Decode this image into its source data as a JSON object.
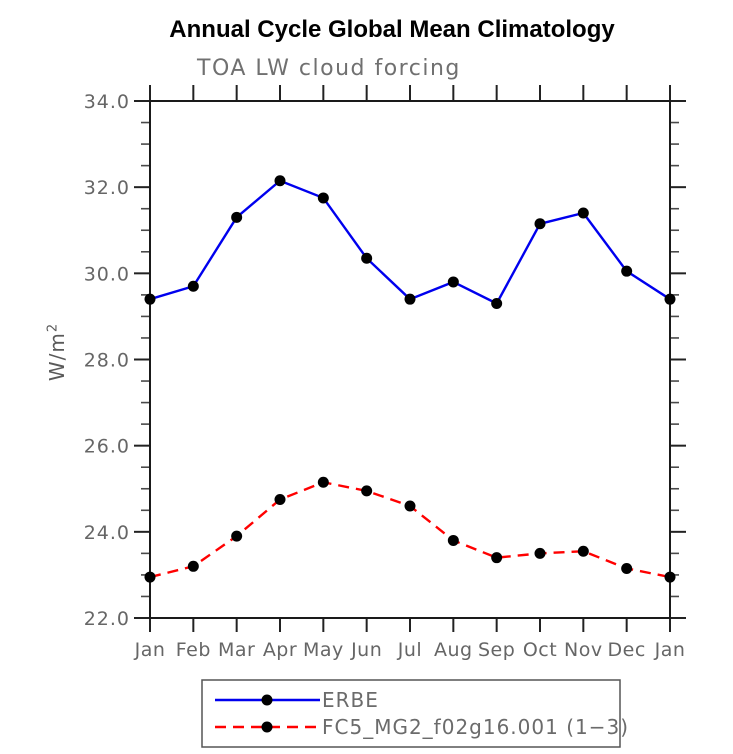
{
  "colors": {
    "background": "#ffffff",
    "axis": "#1a1a1a",
    "tick": "#222222",
    "tick_label": "#666666",
    "title": "#000000",
    "subtitle": "#707070",
    "ylabel": "#5a5a5a",
    "erbe_line": "#0000ee",
    "model_line": "#ff0000",
    "marker": "#000000",
    "legend_border": "#555555",
    "legend_text": "#6b6b6b"
  },
  "chart_data": {
    "type": "line",
    "title": "Annual Cycle Global Mean Climatology",
    "subtitle": "TOA LW cloud forcing",
    "ylabel_base": "W/m",
    "ylabel_exponent": "2",
    "ylabel": "W/m^2",
    "x_tick_labels": [
      "Jan",
      "Feb",
      "Mar",
      "Apr",
      "May",
      "Jun",
      "Jul",
      "Aug",
      "Sep",
      "Oct",
      "Nov",
      "Dec",
      "Jan"
    ],
    "y_ticks": [
      22.0,
      24.0,
      26.0,
      28.0,
      30.0,
      32.0,
      34.0
    ],
    "y_tick_labels": [
      "22.0",
      "24.0",
      "26.0",
      "28.0",
      "30.0",
      "32.0",
      "34.0"
    ],
    "ylim": [
      22.0,
      34.0
    ],
    "y_minor_step": 0.5,
    "grid": false,
    "legend_position": "bottom",
    "series": [
      {
        "name": "ERBE",
        "style": "solid",
        "marker": "circle",
        "color_key": "erbe_line",
        "values": [
          29.4,
          29.7,
          31.3,
          32.15,
          31.75,
          30.35,
          29.4,
          29.8,
          29.3,
          31.15,
          31.4,
          30.05,
          29.4
        ]
      },
      {
        "name": "FC5_MG2_f02g16.001 (1−3)",
        "style": "dashed",
        "marker": "circle",
        "color_key": "model_line",
        "values": [
          22.95,
          23.2,
          23.9,
          24.75,
          25.15,
          24.95,
          24.6,
          23.8,
          23.4,
          23.5,
          23.55,
          23.15,
          22.95
        ]
      }
    ]
  }
}
